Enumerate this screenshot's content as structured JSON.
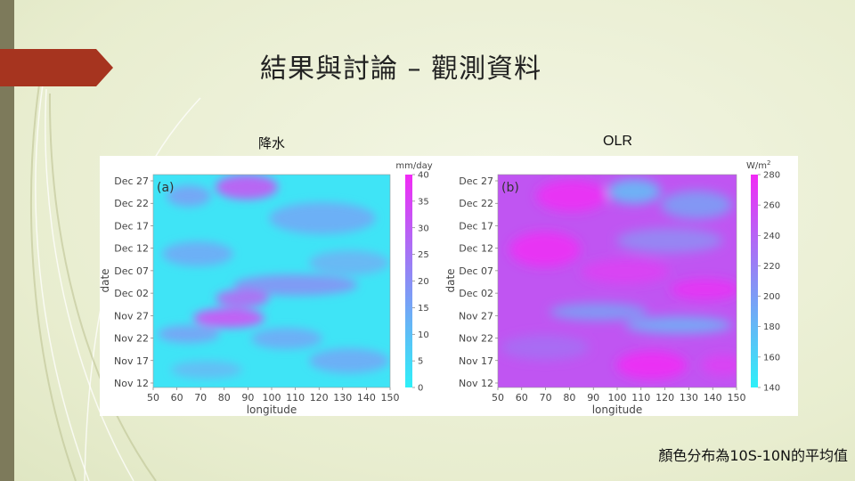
{
  "slide": {
    "title": "結果與討論 – 觀測資料",
    "label_left": "降水",
    "label_right": "OLR",
    "caption": "顏色分布為10S-10N的平均值"
  },
  "colors": {
    "title_tab": "#a6341f",
    "left_bar": "#7d7a5b",
    "map_low": "#2ef0f8",
    "map_mid": "#8a8ef5",
    "map_high": "#f22af5"
  },
  "chart_data": [
    {
      "type": "heatmap",
      "panel_label": "(a)",
      "xlabel": "longitude",
      "ylabel": "date",
      "x_ticks": [
        "50",
        "60",
        "70",
        "80",
        "90",
        "100",
        "110",
        "120",
        "130",
        "140",
        "150"
      ],
      "xlim": [
        50,
        150
      ],
      "y_ticks": [
        "Nov 12",
        "Nov 17",
        "Nov 22",
        "Nov 27",
        "Dec 02",
        "Dec 07",
        "Dec 12",
        "Dec 17",
        "Dec 22",
        "Dec 27"
      ],
      "colorbar": {
        "unit": "mm/day",
        "ticks": [
          "0",
          "5",
          "10",
          "15",
          "20",
          "25",
          "30",
          "35",
          "40"
        ],
        "range": [
          0,
          40
        ]
      }
    },
    {
      "type": "heatmap",
      "panel_label": "(b)",
      "xlabel": "longitude",
      "ylabel": "date",
      "x_ticks": [
        "50",
        "60",
        "70",
        "80",
        "90",
        "100",
        "110",
        "120",
        "130",
        "140",
        "150"
      ],
      "xlim": [
        50,
        150
      ],
      "y_ticks": [
        "Nov 12",
        "Nov 17",
        "Nov 22",
        "Nov 27",
        "Dec 02",
        "Dec 07",
        "Dec 12",
        "Dec 17",
        "Dec 22",
        "Dec 27"
      ],
      "colorbar": {
        "unit_base": "W/m",
        "unit_sup": "2",
        "ticks": [
          "140",
          "160",
          "180",
          "200",
          "220",
          "240",
          "260",
          "280"
        ],
        "range": [
          140,
          280
        ]
      }
    }
  ]
}
